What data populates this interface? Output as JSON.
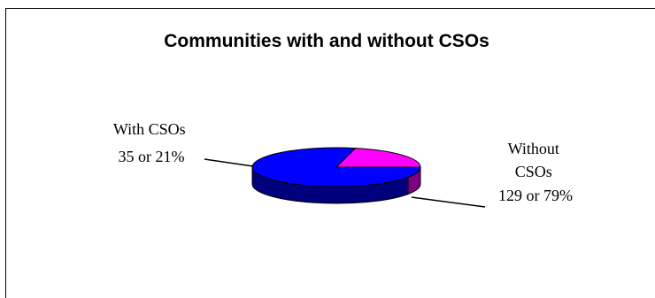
{
  "chart_data": {
    "type": "pie",
    "title": "Communities with and without CSOs",
    "categories": [
      "With CSOs",
      "Without CSOs"
    ],
    "values": [
      35,
      129
    ],
    "percentages": [
      21,
      79
    ],
    "labels": [
      {
        "lines": [
          "With CSOs",
          "35 or 21%"
        ]
      },
      {
        "lines": [
          "Without",
          "CSOs",
          "129 or 79%"
        ]
      }
    ],
    "colors": {
      "with_top": "#ff00ff",
      "with_side": "#7d007d",
      "without_top": "#0000ff",
      "without_side": "#00007d"
    },
    "legend": "none",
    "style": "3d-pie"
  }
}
